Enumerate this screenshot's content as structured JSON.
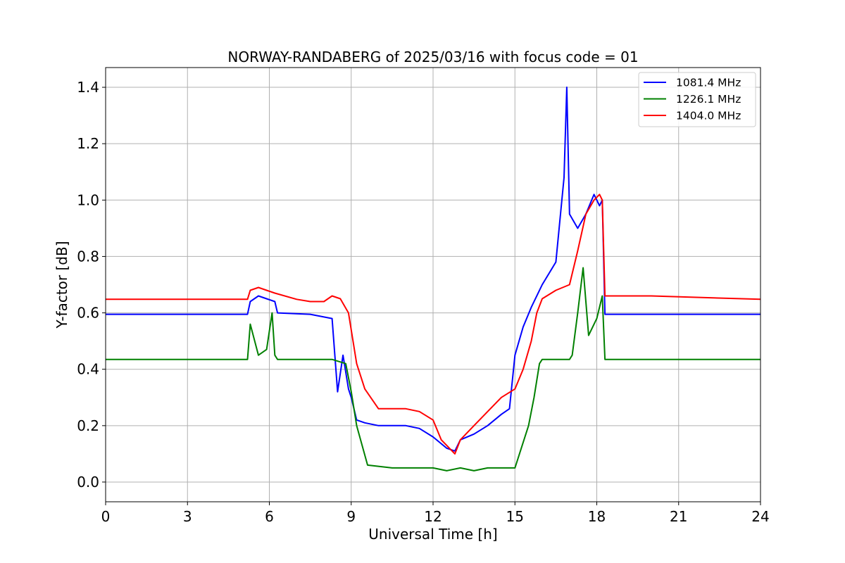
{
  "chart_data": {
    "type": "line",
    "title": "NORWAY-RANDABERG of 2025/03/16 with focus code = 01",
    "xlabel": "Universal Time [h]",
    "ylabel": "Y-factor [dB]",
    "xlim": [
      0,
      24
    ],
    "ylim": [
      -0.07,
      1.47
    ],
    "xticks": [
      0,
      3,
      6,
      9,
      12,
      15,
      18,
      21,
      24
    ],
    "xtick_labels": [
      "0",
      "3",
      "6",
      "9",
      "12",
      "15",
      "18",
      "21",
      "24"
    ],
    "yticks": [
      0.0,
      0.2,
      0.4,
      0.6,
      0.8,
      1.0,
      1.2,
      1.4
    ],
    "ytick_labels": [
      "0.0",
      "0.2",
      "0.4",
      "0.6",
      "0.8",
      "1.0",
      "1.2",
      "1.4"
    ],
    "grid": true,
    "legend_position": "top-right",
    "series": [
      {
        "name": "1081.4 MHz",
        "color": "#0000ff",
        "x": [
          0,
          5.2,
          5.3,
          5.6,
          5.9,
          6.2,
          6.3,
          7.5,
          8.3,
          8.5,
          8.7,
          8.9,
          9.0,
          9.2,
          9.5,
          10.0,
          11.0,
          11.5,
          12.0,
          12.5,
          12.8,
          13.0,
          13.5,
          14.0,
          14.5,
          14.8,
          15.0,
          15.3,
          15.6,
          16.0,
          16.5,
          16.8,
          16.9,
          17.0,
          17.3,
          17.6,
          17.9,
          18.1,
          18.2,
          18.3,
          20.0,
          24
        ],
        "y": [
          0.595,
          0.595,
          0.64,
          0.66,
          0.65,
          0.64,
          0.6,
          0.595,
          0.58,
          0.32,
          0.45,
          0.33,
          0.3,
          0.22,
          0.21,
          0.2,
          0.2,
          0.19,
          0.16,
          0.12,
          0.11,
          0.15,
          0.17,
          0.2,
          0.24,
          0.26,
          0.45,
          0.55,
          0.62,
          0.7,
          0.78,
          1.08,
          1.4,
          0.95,
          0.9,
          0.95,
          1.02,
          0.98,
          1.0,
          0.595,
          0.595,
          0.595
        ]
      },
      {
        "name": "1226.1 MHz",
        "color": "#008000",
        "x": [
          0,
          5.2,
          5.3,
          5.6,
          5.9,
          6.1,
          6.2,
          6.3,
          8.3,
          8.8,
          9.0,
          9.2,
          9.6,
          10.5,
          12.0,
          12.5,
          13.0,
          13.5,
          14.0,
          15.0,
          15.5,
          15.7,
          15.9,
          16.0,
          17.0,
          17.1,
          17.3,
          17.5,
          17.7,
          18.0,
          18.2,
          18.3,
          20.0,
          24
        ],
        "y": [
          0.435,
          0.435,
          0.56,
          0.45,
          0.47,
          0.6,
          0.45,
          0.435,
          0.435,
          0.42,
          0.32,
          0.2,
          0.06,
          0.05,
          0.05,
          0.04,
          0.05,
          0.04,
          0.05,
          0.05,
          0.2,
          0.3,
          0.42,
          0.435,
          0.435,
          0.45,
          0.6,
          0.76,
          0.52,
          0.58,
          0.66,
          0.435,
          0.435,
          0.435
        ]
      },
      {
        "name": "1404.0 MHz",
        "color": "#ff0000",
        "x": [
          0,
          5.2,
          5.3,
          5.6,
          5.9,
          6.2,
          7.0,
          7.5,
          8.0,
          8.3,
          8.6,
          8.9,
          9.2,
          9.5,
          10.0,
          10.5,
          11.0,
          11.5,
          12.0,
          12.3,
          12.8,
          13.0,
          13.5,
          14.0,
          14.5,
          15.0,
          15.3,
          15.6,
          15.8,
          16.0,
          16.5,
          17.0,
          17.3,
          17.6,
          17.9,
          18.1,
          18.2,
          18.3,
          20.0,
          24
        ],
        "y": [
          0.648,
          0.648,
          0.68,
          0.69,
          0.68,
          0.67,
          0.648,
          0.64,
          0.64,
          0.66,
          0.65,
          0.6,
          0.42,
          0.33,
          0.26,
          0.26,
          0.26,
          0.25,
          0.22,
          0.15,
          0.1,
          0.15,
          0.2,
          0.25,
          0.3,
          0.33,
          0.4,
          0.5,
          0.6,
          0.65,
          0.68,
          0.7,
          0.82,
          0.95,
          1.0,
          1.02,
          1.0,
          0.66,
          0.66,
          0.648
        ]
      }
    ]
  }
}
